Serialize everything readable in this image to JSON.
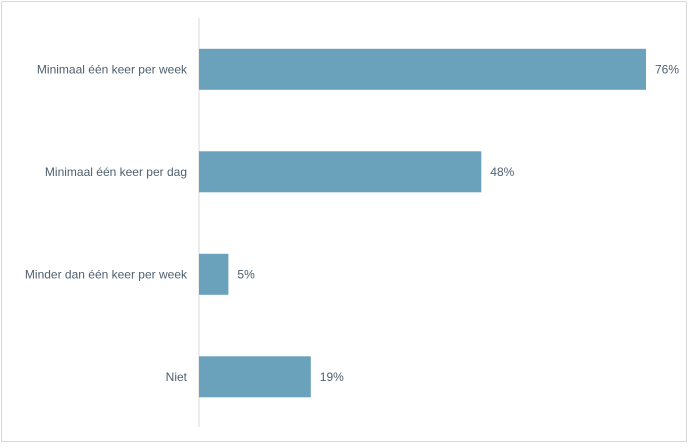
{
  "chart_data": {
    "type": "bar",
    "orientation": "horizontal",
    "categories": [
      "Minimaal één keer per week",
      "Minimaal één keer per dag",
      "Minder dan één keer per week",
      "Niet"
    ],
    "values": [
      76,
      48,
      5,
      19
    ],
    "value_labels": [
      "76%",
      "48%",
      "5%",
      "19%"
    ],
    "unit": "%",
    "xlim": [
      0,
      80
    ],
    "grid": false,
    "legend": "none",
    "colors": {
      "bar": "#6aa2bb",
      "axis": "#d9d9d9",
      "text": "#4e5f6f"
    }
  }
}
